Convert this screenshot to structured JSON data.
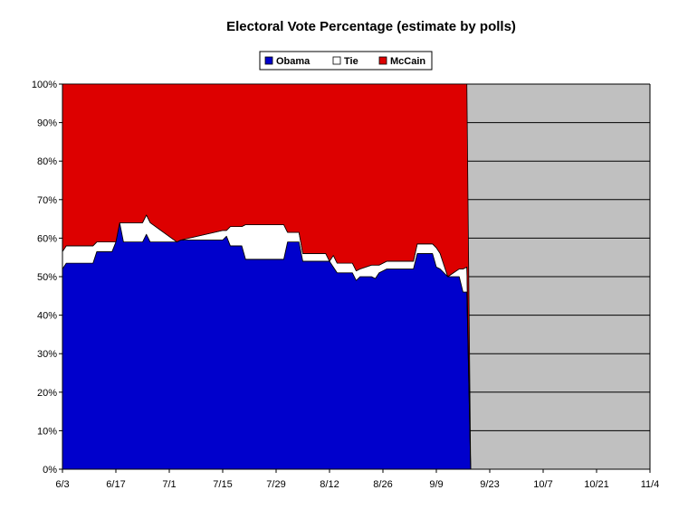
{
  "chart_data": {
    "type": "area",
    "stacked": true,
    "title": "Electoral Vote Percentage (estimate by polls)",
    "xlabel": "",
    "ylabel": "",
    "x_axis": {
      "type": "date",
      "start": "2008-06-03",
      "end": "2008-11-04",
      "tick_labels": [
        "6/3",
        "6/17",
        "7/1",
        "7/15",
        "7/29",
        "8/12",
        "8/26",
        "9/9",
        "9/23",
        "10/7",
        "10/21",
        "11/4"
      ]
    },
    "y_axis": {
      "min": 0,
      "max": 100,
      "step": 10,
      "tick_labels": [
        "0%",
        "10%",
        "20%",
        "30%",
        "40%",
        "50%",
        "60%",
        "70%",
        "80%",
        "90%",
        "100%"
      ]
    },
    "grid": {
      "horizontal": true,
      "vertical": false
    },
    "legend": {
      "placement": "top-center",
      "entries": [
        "Obama",
        "Tie",
        "McCain"
      ]
    },
    "plot_background": "#c0c0c0",
    "series": [
      {
        "name": "Obama",
        "color": "#0000cc",
        "points": [
          [
            "2008-06-03",
            52
          ],
          [
            "2008-06-04",
            53.5
          ],
          [
            "2008-06-11",
            53.5
          ],
          [
            "2008-06-12",
            56.5
          ],
          [
            "2008-06-16",
            56.5
          ],
          [
            "2008-06-17",
            59
          ],
          [
            "2008-06-18",
            64
          ],
          [
            "2008-06-19",
            59
          ],
          [
            "2008-06-24",
            59
          ],
          [
            "2008-06-25",
            61
          ],
          [
            "2008-06-26",
            59
          ],
          [
            "2008-07-03",
            59
          ],
          [
            "2008-07-04",
            59.5
          ],
          [
            "2008-07-15",
            59.5
          ],
          [
            "2008-07-16",
            60.5
          ],
          [
            "2008-07-17",
            58
          ],
          [
            "2008-07-20",
            58
          ],
          [
            "2008-07-21",
            54.5
          ],
          [
            "2008-07-31",
            54.5
          ],
          [
            "2008-08-01",
            59
          ],
          [
            "2008-08-04",
            59
          ],
          [
            "2008-08-05",
            54
          ],
          [
            "2008-08-11",
            54
          ],
          [
            "2008-08-12",
            54
          ],
          [
            "2008-08-13",
            52.5
          ],
          [
            "2008-08-14",
            51
          ],
          [
            "2008-08-18",
            51
          ],
          [
            "2008-08-19",
            49
          ],
          [
            "2008-08-20",
            50
          ],
          [
            "2008-08-23",
            50
          ],
          [
            "2008-08-24",
            49.5
          ],
          [
            "2008-08-25",
            51
          ],
          [
            "2008-08-27",
            52
          ],
          [
            "2008-09-03",
            52
          ],
          [
            "2008-09-04",
            56
          ],
          [
            "2008-09-08",
            56
          ],
          [
            "2008-09-09",
            52.5
          ],
          [
            "2008-09-10",
            52
          ],
          [
            "2008-09-12",
            50
          ],
          [
            "2008-09-15",
            50
          ],
          [
            "2008-09-16",
            46
          ],
          [
            "2008-09-17",
            46
          ],
          [
            "2008-09-18",
            0
          ]
        ]
      },
      {
        "name": "Tie",
        "color": "#ffffff",
        "points": [
          [
            "2008-06-03",
            4.5
          ],
          [
            "2008-06-04",
            4.5
          ],
          [
            "2008-06-11",
            4.5
          ],
          [
            "2008-06-12",
            2.5
          ],
          [
            "2008-06-16",
            2.5
          ],
          [
            "2008-06-17",
            0
          ],
          [
            "2008-06-18",
            0
          ],
          [
            "2008-06-19",
            5
          ],
          [
            "2008-06-24",
            5
          ],
          [
            "2008-06-25",
            5
          ],
          [
            "2008-06-26",
            5
          ],
          [
            "2008-07-03",
            0
          ],
          [
            "2008-07-04",
            0
          ],
          [
            "2008-07-15",
            2.5
          ],
          [
            "2008-07-16",
            1.5
          ],
          [
            "2008-07-17",
            5
          ],
          [
            "2008-07-20",
            5
          ],
          [
            "2008-07-21",
            9
          ],
          [
            "2008-07-31",
            9
          ],
          [
            "2008-08-01",
            2.5
          ],
          [
            "2008-08-04",
            2.5
          ],
          [
            "2008-08-05",
            2
          ],
          [
            "2008-08-11",
            2
          ],
          [
            "2008-08-12",
            0
          ],
          [
            "2008-08-13",
            3
          ],
          [
            "2008-08-14",
            2.5
          ],
          [
            "2008-08-18",
            2.5
          ],
          [
            "2008-08-19",
            2.5
          ],
          [
            "2008-08-20",
            2
          ],
          [
            "2008-08-23",
            3
          ],
          [
            "2008-08-24",
            3.5
          ],
          [
            "2008-08-25",
            2
          ],
          [
            "2008-08-27",
            2
          ],
          [
            "2008-09-03",
            2
          ],
          [
            "2008-09-04",
            2.5
          ],
          [
            "2008-09-08",
            2.5
          ],
          [
            "2008-09-09",
            5
          ],
          [
            "2008-09-10",
            4
          ],
          [
            "2008-09-12",
            0
          ],
          [
            "2008-09-15",
            2
          ],
          [
            "2008-09-16",
            6
          ],
          [
            "2008-09-17",
            6.5
          ],
          [
            "2008-09-18",
            0
          ]
        ]
      },
      {
        "name": "McCain",
        "color": "#dd0000",
        "points": [
          [
            "2008-06-03",
            43.5
          ],
          [
            "2008-06-04",
            42
          ],
          [
            "2008-06-11",
            42
          ],
          [
            "2008-06-12",
            41
          ],
          [
            "2008-06-16",
            41
          ],
          [
            "2008-06-17",
            41
          ],
          [
            "2008-06-18",
            36
          ],
          [
            "2008-06-19",
            36
          ],
          [
            "2008-06-24",
            36
          ],
          [
            "2008-06-25",
            34
          ],
          [
            "2008-06-26",
            36
          ],
          [
            "2008-07-03",
            41
          ],
          [
            "2008-07-04",
            40.5
          ],
          [
            "2008-07-15",
            38
          ],
          [
            "2008-07-16",
            38
          ],
          [
            "2008-07-17",
            37
          ],
          [
            "2008-07-20",
            37
          ],
          [
            "2008-07-21",
            36.5
          ],
          [
            "2008-07-31",
            36.5
          ],
          [
            "2008-08-01",
            38.5
          ],
          [
            "2008-08-04",
            38.5
          ],
          [
            "2008-08-05",
            44
          ],
          [
            "2008-08-11",
            44
          ],
          [
            "2008-08-12",
            46
          ],
          [
            "2008-08-13",
            44.5
          ],
          [
            "2008-08-14",
            46.5
          ],
          [
            "2008-08-18",
            46.5
          ],
          [
            "2008-08-19",
            48.5
          ],
          [
            "2008-08-20",
            48
          ],
          [
            "2008-08-23",
            47
          ],
          [
            "2008-08-24",
            47
          ],
          [
            "2008-08-25",
            47
          ],
          [
            "2008-08-27",
            46
          ],
          [
            "2008-09-03",
            46
          ],
          [
            "2008-09-04",
            41.5
          ],
          [
            "2008-09-08",
            41.5
          ],
          [
            "2008-09-09",
            42.5
          ],
          [
            "2008-09-10",
            44
          ],
          [
            "2008-09-12",
            50
          ],
          [
            "2008-09-15",
            48
          ],
          [
            "2008-09-16",
            48
          ],
          [
            "2008-09-17",
            47.5
          ],
          [
            "2008-09-18",
            0
          ]
        ]
      }
    ]
  }
}
